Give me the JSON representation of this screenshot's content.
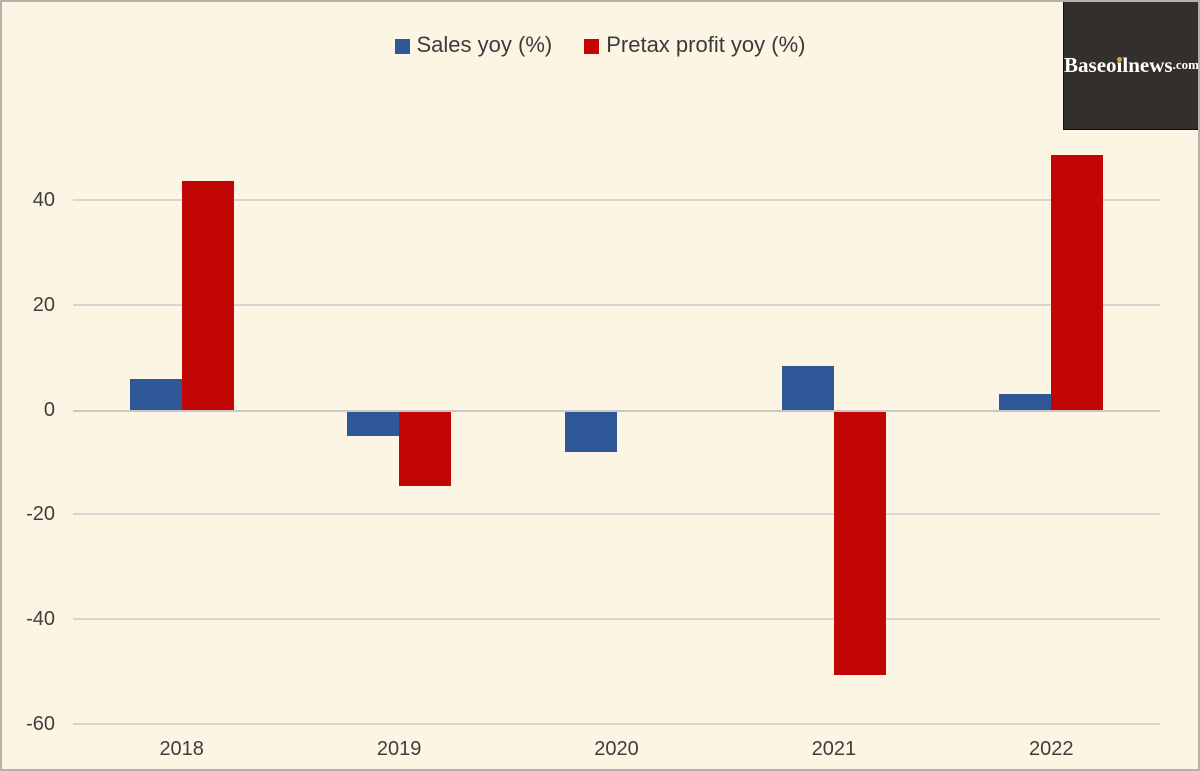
{
  "chart_data": {
    "type": "bar",
    "title": "",
    "categories": [
      "2018",
      "2019",
      "2020",
      "2021",
      "2022"
    ],
    "series": [
      {
        "name": "Sales yoy (%)",
        "color": "#2f5899",
        "values": [
          5.8,
          -5.0,
          -8.1,
          8.4,
          3.0
        ]
      },
      {
        "name": "Pretax profit yoy (%)",
        "color": "#c20505",
        "values": [
          43.6,
          -14.6,
          0,
          -50.7,
          48.6
        ]
      }
    ],
    "xlabel": "",
    "ylabel": "",
    "y_ticks": [
      40,
      20,
      0,
      -20,
      -40,
      -60
    ],
    "ylim": [
      -62,
      52
    ],
    "grid": true,
    "legend_position": "top-center",
    "plot_background": "#fdf5e3",
    "gridline_color": "#d7d5d3",
    "axis_line_color": "#c9c7c5",
    "text_color": "#3e3e3e"
  },
  "legend": {
    "items": [
      {
        "label": "Sales yoy (%)",
        "color": "#2f5899"
      },
      {
        "label": "Pretax profit yoy (%)",
        "color": "#c20505"
      }
    ]
  },
  "watermark": {
    "text": "Baseoilnews",
    "suffix": ".com",
    "background": "#332f2d",
    "text_color": "#ffffff",
    "dot_color": "#dda335"
  }
}
